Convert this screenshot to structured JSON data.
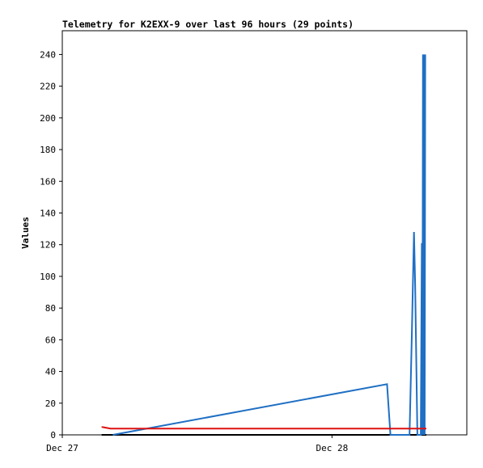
{
  "chart_data": {
    "type": "line",
    "title": "Telemetry for K2EXX-9 over last 96 hours (29 points)",
    "y_label": "Values",
    "xlim": [
      0,
      36
    ],
    "xticks": [
      {
        "value": 0,
        "label": "Dec 27"
      },
      {
        "value": 24,
        "label": "Dec 28"
      }
    ],
    "ylim": [
      0,
      255
    ],
    "yticks": [
      0,
      20,
      40,
      60,
      80,
      100,
      120,
      140,
      160,
      180,
      200,
      220,
      240
    ],
    "series": [
      {
        "color": "#000000",
        "x": [
          3.5,
          32.4
        ],
        "values": [
          0,
          0
        ]
      },
      {
        "color": "#1f6fc4",
        "x": [
          4.5,
          28.9,
          29.2,
          30.9,
          31.1,
          31.3,
          31.4,
          31.6,
          31.9,
          32.0,
          32.05,
          32.1,
          32.15,
          32.2,
          32.25,
          32.3
        ],
        "values": [
          0,
          32,
          0,
          0,
          60,
          128,
          96,
          0,
          0,
          121,
          0,
          240,
          0,
          240,
          0,
          240
        ]
      },
      {
        "color": "#dd1111",
        "x": [
          3.5,
          4.3,
          32.4
        ],
        "values": [
          5,
          4,
          4
        ]
      }
    ]
  }
}
